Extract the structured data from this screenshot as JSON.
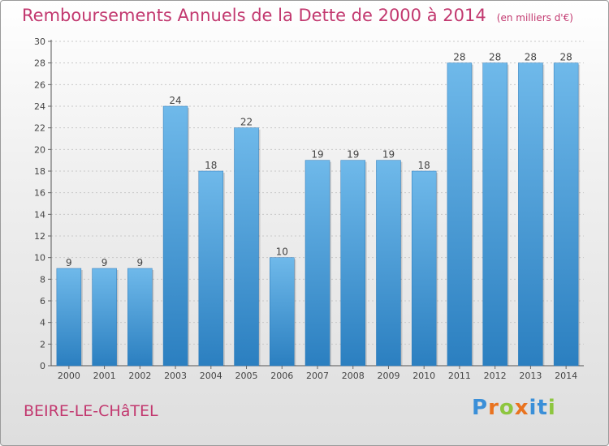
{
  "title": "Remboursements Annuels de la Dette de 2000 à 2014",
  "subtitle": "(en milliers d'€)",
  "commune": "BEIRE-LE-CHâTEL",
  "brand": {
    "letters": [
      "P",
      "r",
      "o",
      "x",
      "i",
      "t",
      "i"
    ],
    "colors": [
      "#3a8fd8",
      "#e9731f",
      "#8dc63f",
      "#e9731f",
      "#3a8fd8",
      "#3a8fd8",
      "#8dc63f"
    ]
  },
  "colors": {
    "title": "#c2386f",
    "bar_light": "#6fb9ea",
    "bar_dark": "#2b7fc0",
    "grid": "#c8c8c8",
    "axis_text": "#444444"
  },
  "chart_data": {
    "type": "bar",
    "categories": [
      "2000",
      "2001",
      "2002",
      "2003",
      "2004",
      "2005",
      "2006",
      "2007",
      "2008",
      "2009",
      "2010",
      "2011",
      "2012",
      "2013",
      "2014"
    ],
    "values": [
      9,
      9,
      9,
      24,
      18,
      22,
      10,
      19,
      19,
      19,
      18,
      28,
      28,
      28,
      28
    ],
    "data_labels": [
      "9",
      "9",
      "9",
      "24",
      "18",
      "22",
      "10",
      "19",
      "19",
      "19",
      "18",
      "28",
      "28",
      "28",
      "28"
    ],
    "yticks": [
      "0",
      "2",
      "4",
      "6",
      "8",
      "10",
      "12",
      "14",
      "16",
      "18",
      "20",
      "22",
      "24",
      "26",
      "28",
      "30"
    ],
    "ylim": [
      0,
      30
    ],
    "grid": true,
    "legend": "none"
  }
}
